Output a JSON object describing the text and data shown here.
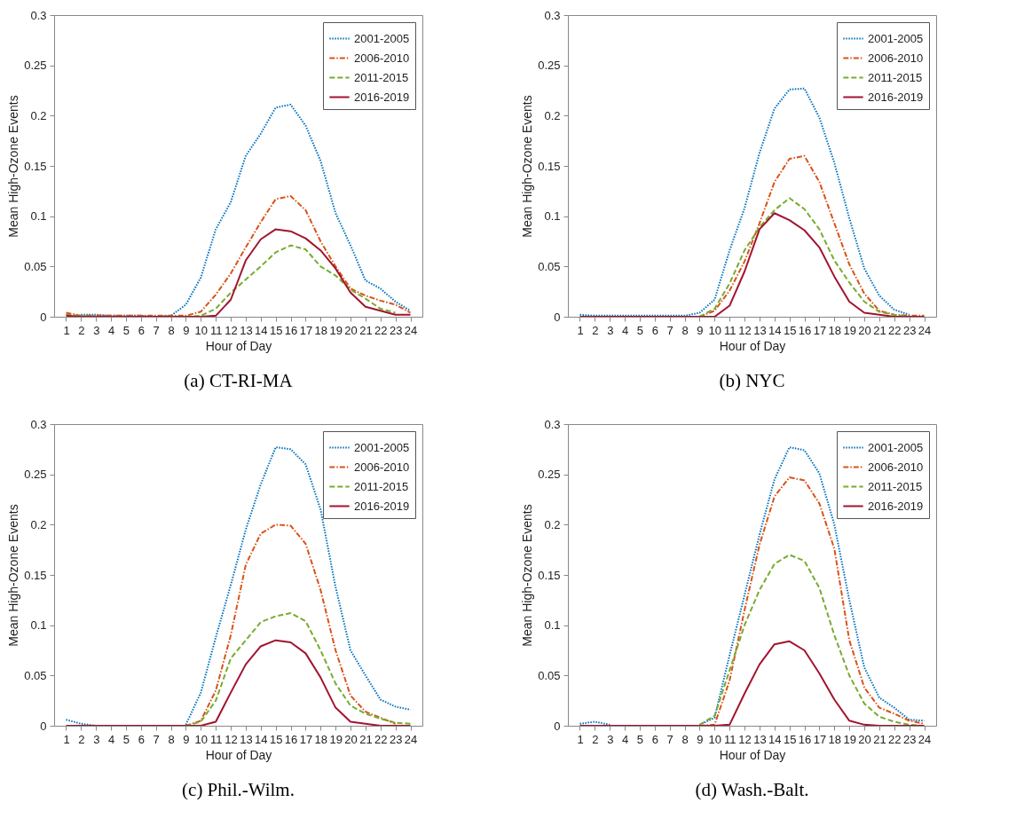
{
  "chart_data": [
    {
      "type": "line",
      "title": "(a) CT-RI-MA",
      "xlabel": "Hour of Day",
      "ylabel": "Mean High-Ozone Events",
      "x": [
        1,
        2,
        3,
        4,
        5,
        6,
        7,
        8,
        9,
        10,
        11,
        12,
        13,
        14,
        15,
        16,
        17,
        18,
        19,
        20,
        21,
        22,
        23,
        24
      ],
      "xlim": [
        0.2,
        24.8
      ],
      "xticks": [
        1,
        2,
        3,
        4,
        5,
        6,
        7,
        8,
        9,
        10,
        11,
        12,
        13,
        14,
        15,
        16,
        17,
        18,
        19,
        20,
        21,
        22,
        23,
        24
      ],
      "ylim": [
        0,
        0.3
      ],
      "yticks": [
        0,
        0.05,
        0.1,
        0.15,
        0.2,
        0.25,
        0.3
      ],
      "grid": false,
      "legend": "top right",
      "series": [
        {
          "name": "2001-2005",
          "color": "#0072bd",
          "line_style": "dotted",
          "values": [
            null,
            0.002,
            0.002,
            0.001,
            0.001,
            0.001,
            0,
            0.001,
            0.012,
            0.039,
            0.087,
            0.114,
            0.16,
            0.182,
            0.208,
            0.211,
            0.19,
            0.155,
            0.103,
            0.071,
            0.036,
            0.028,
            0.015,
            0.006
          ]
        },
        {
          "name": "2006-2010",
          "color": "#d95319",
          "line_style": "dashdot",
          "values": [
            0.004,
            0.001,
            0.001,
            0.001,
            0.001,
            0.001,
            0.001,
            0.001,
            0.001,
            0.005,
            0.022,
            0.043,
            0.069,
            0.094,
            0.117,
            0.12,
            0.106,
            0.075,
            0.05,
            0.028,
            0.021,
            0.016,
            0.012,
            0.004
          ]
        },
        {
          "name": "2011-2015",
          "color": "#77ac30",
          "line_style": "dashed",
          "values": [
            0.002,
            0.001,
            0,
            0,
            0,
            0,
            0,
            0,
            0,
            0.001,
            0.008,
            0.024,
            0.037,
            0.05,
            0.064,
            0.071,
            0.067,
            0.05,
            0.041,
            0.027,
            0.018,
            0.008,
            0.004,
            null
          ]
        },
        {
          "name": "2016-2019",
          "color": "#a2142f",
          "line_style": "solid",
          "values": [
            0.001,
            0,
            0,
            0,
            0,
            0,
            0,
            0,
            0,
            0,
            0.001,
            0.017,
            0.056,
            0.077,
            0.087,
            0.085,
            0.078,
            0.066,
            0.048,
            0.024,
            0.01,
            0.006,
            0.002,
            0.002
          ]
        }
      ]
    },
    {
      "type": "line",
      "title": "(b) NYC",
      "xlabel": "Hour of Day",
      "ylabel": "Mean High-Ozone Events",
      "x": [
        1,
        2,
        3,
        4,
        5,
        6,
        7,
        8,
        9,
        10,
        11,
        12,
        13,
        14,
        15,
        16,
        17,
        18,
        19,
        20,
        21,
        22,
        23,
        24
      ],
      "xlim": [
        0.2,
        24.8
      ],
      "xticks": [
        1,
        2,
        3,
        4,
        5,
        6,
        7,
        8,
        9,
        10,
        11,
        12,
        13,
        14,
        15,
        16,
        17,
        18,
        19,
        20,
        21,
        22,
        23,
        24
      ],
      "ylim": [
        0,
        0.3
      ],
      "yticks": [
        0,
        0.05,
        0.1,
        0.15,
        0.2,
        0.25,
        0.3
      ],
      "grid": false,
      "legend": "top right",
      "series": [
        {
          "name": "2001-2005",
          "color": "#0072bd",
          "line_style": "dotted",
          "values": [
            0.002,
            0.001,
            0.001,
            0.001,
            0.001,
            0.001,
            0.001,
            0.001,
            0.004,
            0.017,
            0.066,
            0.108,
            0.163,
            0.207,
            0.226,
            0.227,
            0.198,
            0.153,
            0.098,
            0.048,
            0.021,
            0.007,
            0.002,
            null
          ]
        },
        {
          "name": "2006-2010",
          "color": "#d95319",
          "line_style": "dashdot",
          "values": [
            null,
            null,
            null,
            null,
            null,
            null,
            null,
            null,
            0,
            0.006,
            0.026,
            0.055,
            0.093,
            0.134,
            0.157,
            0.16,
            0.134,
            0.093,
            0.052,
            0.023,
            0.006,
            0.002,
            0.001,
            0.001
          ]
        },
        {
          "name": "2011-2015",
          "color": "#77ac30",
          "line_style": "dashed",
          "values": [
            null,
            null,
            null,
            null,
            null,
            null,
            null,
            null,
            0,
            0.008,
            0.033,
            0.066,
            0.089,
            0.106,
            0.118,
            0.107,
            0.087,
            0.056,
            0.034,
            0.015,
            0.005,
            0.002,
            0,
            0
          ]
        },
        {
          "name": "2016-2019",
          "color": "#a2142f",
          "line_style": "solid",
          "values": [
            0,
            0,
            0,
            0,
            0,
            0,
            0,
            0,
            0,
            0,
            0.011,
            0.045,
            0.087,
            0.103,
            0.096,
            0.086,
            0.069,
            0.04,
            0.015,
            0.004,
            0.002,
            0,
            0,
            0
          ]
        }
      ]
    },
    {
      "type": "line",
      "title": "(c) Phil.-Wilm.",
      "xlabel": "Hour of Day",
      "ylabel": "Mean High-Ozone Events",
      "x": [
        1,
        2,
        3,
        4,
        5,
        6,
        7,
        8,
        9,
        10,
        11,
        12,
        13,
        14,
        15,
        16,
        17,
        18,
        19,
        20,
        21,
        22,
        23,
        24
      ],
      "xlim": [
        0.2,
        24.8
      ],
      "xticks": [
        1,
        2,
        3,
        4,
        5,
        6,
        7,
        8,
        9,
        10,
        11,
        12,
        13,
        14,
        15,
        16,
        17,
        18,
        19,
        20,
        21,
        22,
        23,
        24
      ],
      "ylim": [
        0,
        0.3
      ],
      "yticks": [
        0,
        0.05,
        0.1,
        0.15,
        0.2,
        0.25,
        0.3
      ],
      "grid": false,
      "legend": "top right",
      "series": [
        {
          "name": "2001-2005",
          "color": "#0072bd",
          "line_style": "dotted",
          "values": [
            0.006,
            0.002,
            0,
            null,
            null,
            null,
            null,
            null,
            0.001,
            0.033,
            0.088,
            0.14,
            0.195,
            0.24,
            0.277,
            0.275,
            0.26,
            0.215,
            0.138,
            0.075,
            0.05,
            0.026,
            0.019,
            0.016
          ]
        },
        {
          "name": "2006-2010",
          "color": "#d95319",
          "line_style": "dashdot",
          "values": [
            null,
            null,
            null,
            null,
            null,
            null,
            null,
            null,
            0,
            0.005,
            0.035,
            0.09,
            0.16,
            0.191,
            0.2,
            0.199,
            0.181,
            0.135,
            0.075,
            0.03,
            0.014,
            0.008,
            0.002,
            null
          ]
        },
        {
          "name": "2011-2015",
          "color": "#77ac30",
          "line_style": "dashed",
          "values": [
            null,
            null,
            null,
            null,
            null,
            null,
            null,
            null,
            0,
            0.004,
            0.025,
            0.067,
            0.085,
            0.103,
            0.109,
            0.112,
            0.104,
            0.075,
            0.042,
            0.02,
            0.012,
            0.007,
            0.003,
            0.002
          ]
        },
        {
          "name": "2016-2019",
          "color": "#a2142f",
          "line_style": "solid",
          "values": [
            0,
            0,
            0,
            0,
            0,
            0,
            0,
            0,
            0,
            0,
            0.004,
            0.033,
            0.061,
            0.079,
            0.085,
            0.083,
            0.072,
            0.048,
            0.018,
            0.004,
            0.002,
            0,
            0,
            0
          ]
        }
      ]
    },
    {
      "type": "line",
      "title": "(d) Wash.-Balt.",
      "xlabel": "Hour of Day",
      "ylabel": "Mean High-Ozone Events",
      "x": [
        1,
        2,
        3,
        4,
        5,
        6,
        7,
        8,
        9,
        10,
        11,
        12,
        13,
        14,
        15,
        16,
        17,
        18,
        19,
        20,
        21,
        22,
        23,
        24
      ],
      "xlim": [
        0.2,
        24.8
      ],
      "xticks": [
        1,
        2,
        3,
        4,
        5,
        6,
        7,
        8,
        9,
        10,
        11,
        12,
        13,
        14,
        15,
        16,
        17,
        18,
        19,
        20,
        21,
        22,
        23,
        24
      ],
      "ylim": [
        0,
        0.3
      ],
      "yticks": [
        0,
        0.05,
        0.1,
        0.15,
        0.2,
        0.25,
        0.3
      ],
      "grid": false,
      "legend": "top right",
      "series": [
        {
          "name": "2001-2005",
          "color": "#0072bd",
          "line_style": "dotted",
          "values": [
            0.002,
            0.004,
            0.001,
            null,
            null,
            null,
            null,
            null,
            0.001,
            0.008,
            0.07,
            0.13,
            0.19,
            0.245,
            0.277,
            0.274,
            0.251,
            0.2,
            0.125,
            0.058,
            0.028,
            0.018,
            0.006,
            0.005
          ]
        },
        {
          "name": "2006-2010",
          "color": "#d95319",
          "line_style": "dashdot",
          "values": [
            null,
            null,
            null,
            null,
            null,
            null,
            null,
            null,
            0,
            0.001,
            0.045,
            0.115,
            0.18,
            0.228,
            0.247,
            0.244,
            0.221,
            0.176,
            0.085,
            0.038,
            0.018,
            0.012,
            0.005,
            0.002
          ]
        },
        {
          "name": "2011-2015",
          "color": "#77ac30",
          "line_style": "dashed",
          "values": [
            null,
            null,
            null,
            null,
            null,
            null,
            null,
            null,
            0.001,
            0.01,
            0.055,
            0.1,
            0.135,
            0.161,
            0.17,
            0.164,
            0.137,
            0.09,
            0.05,
            0.022,
            0.009,
            0.004,
            0.001,
            0
          ]
        },
        {
          "name": "2016-2019",
          "color": "#a2142f",
          "line_style": "solid",
          "values": [
            0,
            0,
            0,
            0,
            0,
            0,
            0,
            0,
            0,
            0,
            0.001,
            0.032,
            0.061,
            0.081,
            0.084,
            0.075,
            0.052,
            0.026,
            0.005,
            0.001,
            0,
            0,
            0,
            0
          ]
        }
      ]
    }
  ]
}
